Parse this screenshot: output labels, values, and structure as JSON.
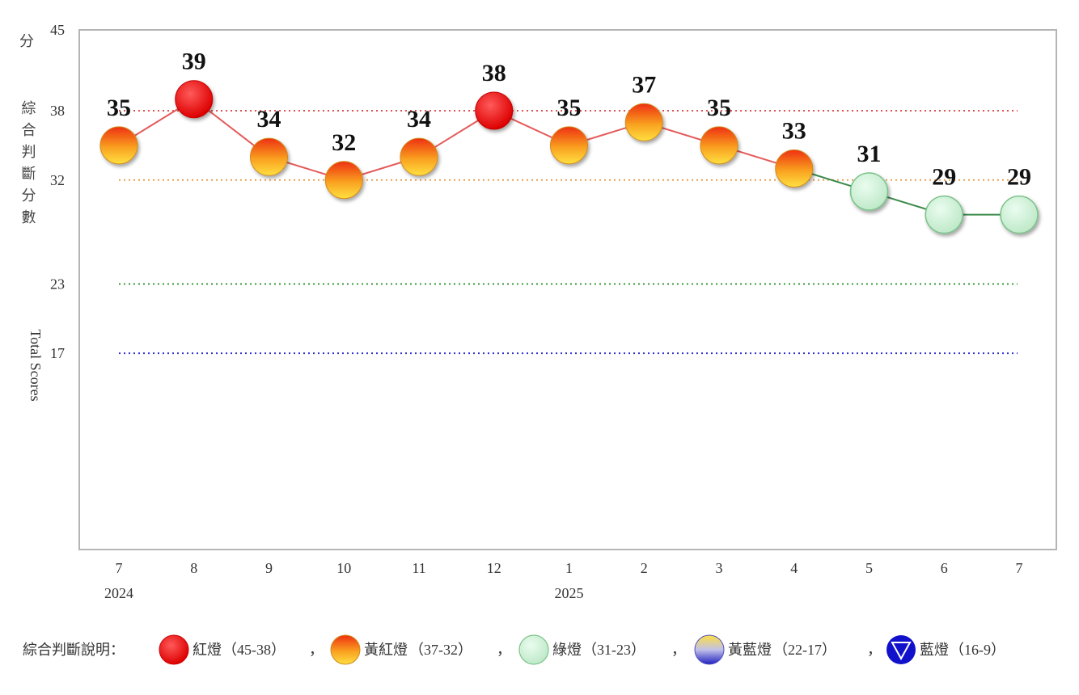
{
  "chart_data": {
    "type": "line",
    "ylabel_cjk": "綜合判斷分數",
    "ylabel_en": "Total Scores",
    "y_unit": "分",
    "ylim": [
      0,
      45
    ],
    "y_ticks": [
      45,
      38,
      32,
      23,
      17
    ],
    "categories": [
      "7",
      "8",
      "9",
      "10",
      "11",
      "12",
      "1",
      "2",
      "3",
      "4",
      "5",
      "6",
      "7"
    ],
    "years": [
      {
        "label": "2024",
        "category_index": 0
      },
      {
        "label": "2025",
        "category_index": 6
      }
    ],
    "series": [
      {
        "values": [
          35,
          39,
          34,
          32,
          34,
          38,
          35,
          37,
          35,
          33,
          31,
          29,
          29
        ]
      }
    ],
    "reference_lines": [
      {
        "value": 38,
        "color": "#e05050"
      },
      {
        "value": 32,
        "color": "#e8a050"
      },
      {
        "value": 23,
        "color": "#3a9a3a"
      },
      {
        "value": 17,
        "color": "#3030d0"
      }
    ],
    "signal_colors": {
      "red": "#ee1111",
      "yellow_red": "#f7a020",
      "green": "#c8f0d0",
      "yellow_blue": "#8888dd",
      "blue": "#1010cc"
    },
    "grid": false,
    "legend": {
      "placement": "bottom",
      "title": "綜合判斷說明：",
      "separator": "，",
      "items": [
        {
          "name": "紅燈",
          "range": "（45-38）",
          "signal": "red",
          "icon": "red-light-icon"
        },
        {
          "name": "黃紅燈",
          "range": "（37-32）",
          "signal": "yellow-red",
          "icon": "yellow-red-light-icon"
        },
        {
          "name": "綠燈",
          "range": "（31-23）",
          "signal": "green",
          "icon": "green-light-icon"
        },
        {
          "name": "黃藍燈",
          "range": "（22-17）",
          "signal": "yellow-blue",
          "icon": "yellow-blue-light-icon"
        },
        {
          "name": "藍燈",
          "range": "（16-9）",
          "signal": "blue",
          "icon": "blue-light-icon"
        }
      ]
    }
  }
}
